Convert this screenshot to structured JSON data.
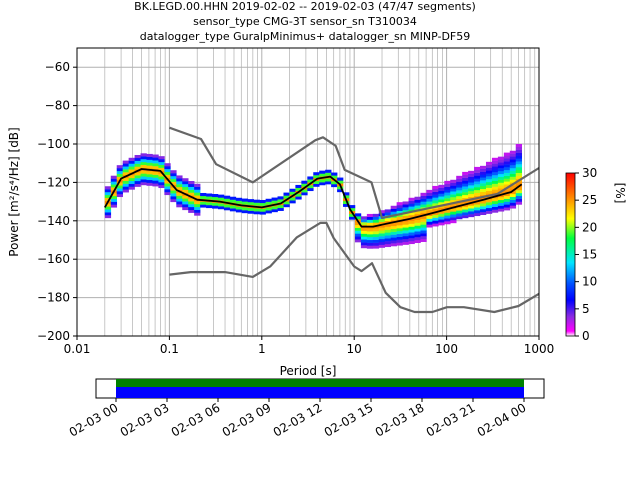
{
  "title_lines": [
    "BK.LEGD.00.HHN   2019-02-02 -- 2019-02-03  (47/47 segments)",
    "sensor_type CMG-3T sensor_sn T310034",
    "datalogger_type GuralpMinimus+ datalogger_sn MINP-DF59"
  ],
  "chart_data": {
    "type": "heatmap",
    "xlabel": "Period [s]",
    "ylabel": "Power [m²/s⁴/Hz] [dB]",
    "x_scale": "log",
    "xlim": [
      0.01,
      1000
    ],
    "ylim": [
      -200,
      -50
    ],
    "x_ticks": [
      0.01,
      0.1,
      1,
      10,
      100,
      1000
    ],
    "x_tick_labels": [
      "0.01",
      "0.1",
      "1",
      "10",
      "100",
      "1000"
    ],
    "y_ticks": [
      -60,
      -80,
      -100,
      -120,
      -140,
      -160,
      -180,
      -200
    ],
    "y_tick_labels": [
      "−60",
      "−80",
      "−100",
      "−120",
      "−140",
      "−160",
      "−180",
      "−200"
    ],
    "grid": true,
    "colorbar": {
      "label": "[%]",
      "min": 0,
      "max": 30,
      "ticks": [
        0,
        5,
        10,
        15,
        20,
        25,
        30
      ],
      "tick_labels": [
        "0",
        "5",
        "10",
        "15",
        "20",
        "25",
        "30"
      ],
      "colormap": "pqlx"
    },
    "mode_line": {
      "period": [
        0.02,
        0.03,
        0.05,
        0.08,
        0.12,
        0.2,
        0.35,
        0.6,
        1.0,
        1.6,
        2.5,
        4,
        5.5,
        7,
        9,
        12,
        16,
        25,
        40,
        70,
        120,
        250,
        500,
        650
      ],
      "power": [
        -133,
        -118,
        -113,
        -114,
        -124,
        -129,
        -130,
        -132,
        -133,
        -131,
        -125,
        -118,
        -117,
        -121,
        -134,
        -143,
        -143,
        -141,
        -139,
        -136,
        -133,
        -129,
        -125,
        -121
      ]
    },
    "nhnm": {
      "period": [
        0.1,
        0.22,
        0.32,
        0.8,
        3.8,
        4.6,
        6.3,
        7.9,
        15.4,
        20,
        354.8,
        1000
      ],
      "power": [
        -91.5,
        -97.4,
        -110.5,
        -120,
        -98,
        -96.5,
        -101,
        -113.5,
        -120,
        -138.5,
        -126,
        -112.5
      ]
    },
    "nlnm": {
      "period": [
        0.1,
        0.17,
        0.4,
        0.8,
        1.24,
        2.4,
        4.3,
        5,
        6,
        10,
        12,
        15.6,
        21.9,
        31.6,
        45,
        70,
        101,
        154,
        328,
        600,
        1000
      ],
      "power": [
        -168,
        -166.7,
        -166.7,
        -169.2,
        -163.7,
        -148.6,
        -141.1,
        -141.1,
        -149,
        -163.8,
        -166.2,
        -162.1,
        -177.5,
        -185,
        -187.5,
        -187.5,
        -185,
        -185,
        -187.5,
        -184.4,
        -178
      ]
    },
    "time_bar": {
      "start_label": "02-03 00",
      "tick_labels": [
        "02-03 00",
        "02-03 03",
        "02-03 06",
        "02-03 09",
        "02-03 12",
        "02-03 15",
        "02-03 18",
        "02-03 21",
        "02-04 00"
      ],
      "coverage_colors": [
        "#008000",
        "#0000ff"
      ],
      "coverage_fraction": 1.0
    }
  }
}
